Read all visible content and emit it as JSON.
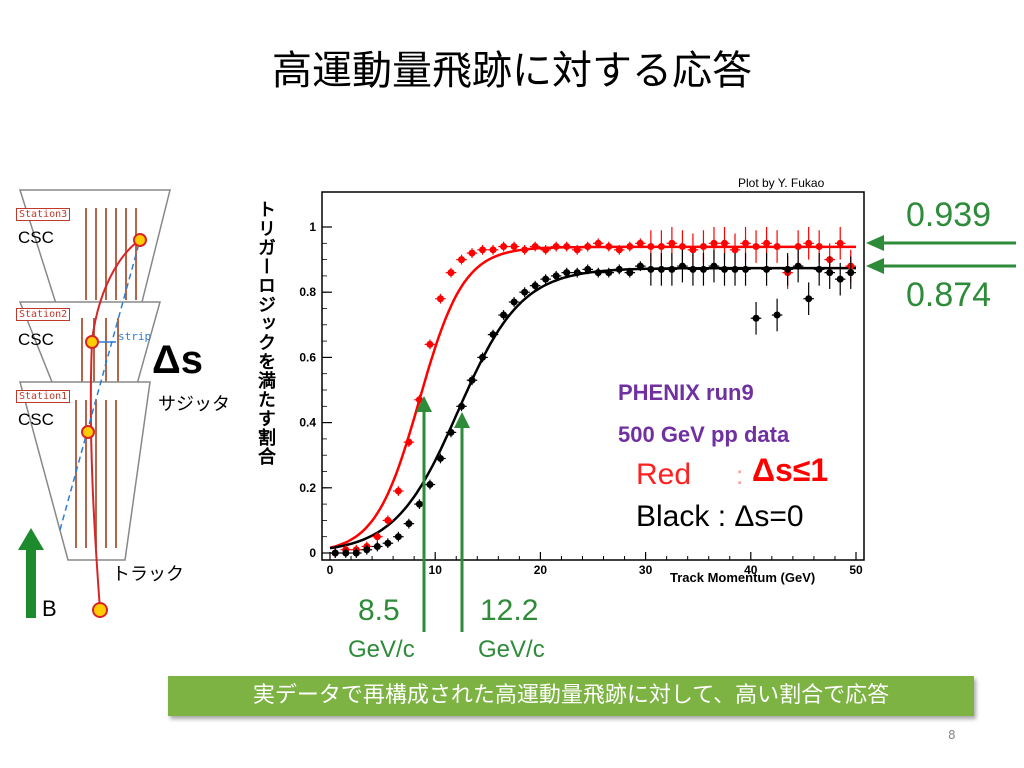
{
  "slide": {
    "title": "高運動量飛跡に対する応答",
    "plot_credit": "Plot by Y. Fukao",
    "banner": "実データで再構成された高運動量飛跡に対して、高い割合で応答",
    "page_number": "8"
  },
  "detector": {
    "stations": [
      "Station3",
      "Station2",
      "Station1"
    ],
    "csc_label": "CSC",
    "strip_label": "strip",
    "delta_s": "Δs",
    "sagitta_label": "サジッタ",
    "track_label": "トラック",
    "field_label": "B",
    "colors": {
      "field_arrow": "#1e8a2e",
      "track": "#d62728",
      "strips": "#b5654a"
    }
  },
  "annotations": {
    "eff_red": "0.939",
    "eff_black": "0.874",
    "thr_red_value": "8.5",
    "thr_red_unit": "GeV/c",
    "thr_black_value": "12.2",
    "thr_black_unit": "GeV/c",
    "phenix_line1": "PHENIX run9",
    "phenix_line2": "500 GeV pp data",
    "legend_red": "Red",
    "legend_red_sep": ":",
    "legend_red_cut": "Δs≤1",
    "legend_black": "Black : Δs=0",
    "colors": {
      "green": "#2e8b3a",
      "purple": "#7030a0",
      "red": "#ff0000"
    }
  },
  "chart_data": {
    "type": "scatter",
    "ylabel": "トリガーロジックを満たす割合",
    "xlabel": "Track Momentum (GeV)",
    "xlim": [
      0,
      50
    ],
    "ylim": [
      0,
      1.05
    ],
    "x_ticks": [
      0,
      10,
      20,
      30,
      40,
      50
    ],
    "y_ticks": [
      0,
      0.2,
      0.4,
      0.6,
      0.8,
      1
    ],
    "y_tick_labels": [
      "0",
      "0.2",
      "0.4",
      "0.6",
      "0.8",
      "1"
    ],
    "series": [
      {
        "name": "Red",
        "color": "#ff0000",
        "fit_plateau": 0.939,
        "fit_threshold": 8.5,
        "points": [
          [
            0.5,
            0.0
          ],
          [
            1.5,
            0.01
          ],
          [
            2.5,
            0.01
          ],
          [
            3.5,
            0.02
          ],
          [
            4.5,
            0.05
          ],
          [
            5.5,
            0.1
          ],
          [
            6.5,
            0.19
          ],
          [
            7.5,
            0.34
          ],
          [
            8.5,
            0.47
          ],
          [
            9.5,
            0.64
          ],
          [
            10.5,
            0.78
          ],
          [
            11.5,
            0.86
          ],
          [
            12.5,
            0.9
          ],
          [
            13.5,
            0.92
          ],
          [
            14.5,
            0.93
          ],
          [
            15.5,
            0.93
          ],
          [
            16.5,
            0.94
          ],
          [
            17.5,
            0.94
          ],
          [
            18.5,
            0.93
          ],
          [
            19.5,
            0.94
          ],
          [
            20.5,
            0.93
          ],
          [
            21.5,
            0.94
          ],
          [
            22.5,
            0.94
          ],
          [
            23.5,
            0.93
          ],
          [
            24.5,
            0.94
          ],
          [
            25.5,
            0.95
          ],
          [
            26.5,
            0.94
          ],
          [
            27.5,
            0.93
          ],
          [
            28.5,
            0.94
          ],
          [
            29.5,
            0.95
          ],
          [
            30.5,
            0.94
          ],
          [
            31.5,
            0.94
          ],
          [
            32.5,
            0.95
          ],
          [
            33.5,
            0.94
          ],
          [
            34.5,
            0.93
          ],
          [
            35.5,
            0.94
          ],
          [
            36.5,
            0.95
          ],
          [
            37.5,
            0.95
          ],
          [
            38.5,
            0.93
          ],
          [
            39.5,
            0.95
          ],
          [
            40.5,
            0.94
          ],
          [
            41.5,
            0.95
          ],
          [
            42.5,
            0.94
          ],
          [
            43.5,
            0.86
          ],
          [
            44.5,
            0.94
          ],
          [
            45.5,
            0.95
          ],
          [
            46.5,
            0.94
          ],
          [
            47.5,
            0.9
          ],
          [
            48.5,
            0.95
          ],
          [
            49.5,
            0.88
          ]
        ]
      },
      {
        "name": "Black",
        "color": "#000000",
        "fit_plateau": 0.874,
        "fit_threshold": 12.2,
        "points": [
          [
            0.5,
            0.0
          ],
          [
            1.5,
            0.0
          ],
          [
            2.5,
            0.0
          ],
          [
            3.5,
            0.01
          ],
          [
            4.5,
            0.02
          ],
          [
            5.5,
            0.03
          ],
          [
            6.5,
            0.05
          ],
          [
            7.5,
            0.09
          ],
          [
            8.5,
            0.15
          ],
          [
            9.5,
            0.21
          ],
          [
            10.5,
            0.29
          ],
          [
            11.5,
            0.37
          ],
          [
            12.5,
            0.45
          ],
          [
            13.5,
            0.53
          ],
          [
            14.5,
            0.6
          ],
          [
            15.5,
            0.67
          ],
          [
            16.5,
            0.73
          ],
          [
            17.5,
            0.77
          ],
          [
            18.5,
            0.8
          ],
          [
            19.5,
            0.82
          ],
          [
            20.5,
            0.84
          ],
          [
            21.5,
            0.85
          ],
          [
            22.5,
            0.86
          ],
          [
            23.5,
            0.86
          ],
          [
            24.5,
            0.87
          ],
          [
            25.5,
            0.86
          ],
          [
            26.5,
            0.86
          ],
          [
            27.5,
            0.87
          ],
          [
            28.5,
            0.86
          ],
          [
            29.5,
            0.88
          ],
          [
            30.5,
            0.87
          ],
          [
            31.5,
            0.87
          ],
          [
            32.5,
            0.87
          ],
          [
            33.5,
            0.88
          ],
          [
            34.5,
            0.87
          ],
          [
            35.5,
            0.87
          ],
          [
            36.5,
            0.88
          ],
          [
            37.5,
            0.87
          ],
          [
            38.5,
            0.87
          ],
          [
            39.5,
            0.87
          ],
          [
            40.5,
            0.72
          ],
          [
            41.5,
            0.87
          ],
          [
            42.5,
            0.73
          ],
          [
            43.5,
            0.87
          ],
          [
            44.5,
            0.88
          ],
          [
            45.5,
            0.78
          ],
          [
            46.5,
            0.87
          ],
          [
            47.5,
            0.86
          ],
          [
            48.5,
            0.84
          ],
          [
            49.5,
            0.86
          ]
        ]
      }
    ]
  }
}
